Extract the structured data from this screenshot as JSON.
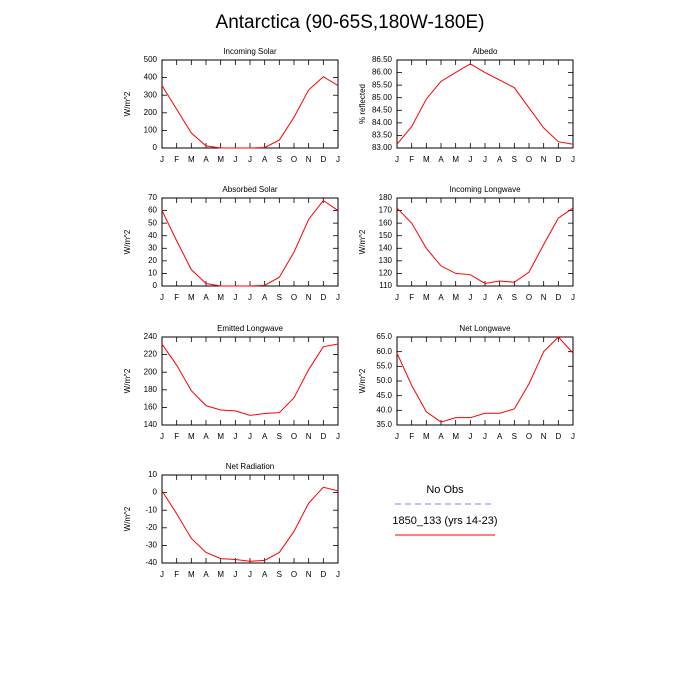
{
  "title": "Antarctica (90-65S,180W-180E)",
  "legend": [
    {
      "name": "No Obs",
      "color": "#8080ff",
      "dashed": true
    },
    {
      "name": "1850_133 (yrs 14-23)",
      "color": "#ff0000",
      "dashed": false
    }
  ],
  "chart_data": [
    {
      "type": "line",
      "title": "Incoming Solar",
      "ylabel": "W/m^2",
      "categories": [
        "J",
        "F",
        "M",
        "A",
        "M",
        "J",
        "J",
        "A",
        "S",
        "O",
        "N",
        "D",
        "J"
      ],
      "values": [
        355,
        220,
        85,
        12,
        0,
        0,
        0,
        3,
        45,
        175,
        330,
        405,
        355
      ],
      "color": "#ff0000",
      "ylim": [
        0,
        500
      ],
      "yticks": [
        0,
        100,
        200,
        300,
        400,
        500
      ]
    },
    {
      "type": "line",
      "title": "Albedo",
      "ylabel": "% reflected",
      "categories": [
        "J",
        "F",
        "M",
        "A",
        "M",
        "J",
        "J",
        "A",
        "S",
        "O",
        "N",
        "D",
        "J"
      ],
      "values": [
        83.15,
        83.85,
        84.95,
        85.65,
        86.0,
        86.35,
        86.0,
        85.7,
        85.4,
        84.6,
        83.8,
        83.25,
        83.15
      ],
      "color": "#ff0000",
      "ylim": [
        83,
        86.5
      ],
      "yticks": [
        {
          "value": 83,
          "label": "83.00"
        },
        {
          "value": 83.5,
          "label": "83.50"
        },
        {
          "value": 84,
          "label": "84.00"
        },
        {
          "value": 84.5,
          "label": "84.50"
        },
        {
          "value": 85,
          "label": "85.00"
        },
        {
          "value": 85.5,
          "label": "85.50"
        },
        {
          "value": 86,
          "label": "86.00"
        },
        {
          "value": 86.5,
          "label": "86.50"
        }
      ]
    },
    {
      "type": "line",
      "title": "Absorbed Solar",
      "ylabel": "W/m^2",
      "categories": [
        "J",
        "F",
        "M",
        "A",
        "M",
        "J",
        "J",
        "A",
        "S",
        "O",
        "N",
        "D",
        "J"
      ],
      "values": [
        60,
        36,
        13,
        2,
        0,
        0,
        0,
        0.5,
        7,
        27,
        53,
        68,
        60
      ],
      "color": "#ff0000",
      "ylim": [
        0,
        70
      ],
      "yticks": [
        0,
        10,
        20,
        30,
        40,
        50,
        60,
        70
      ]
    },
    {
      "type": "line",
      "title": "Incoming Longwave",
      "ylabel": "W/m^2",
      "categories": [
        "J",
        "F",
        "M",
        "A",
        "M",
        "J",
        "J",
        "A",
        "S",
        "O",
        "N",
        "D",
        "J"
      ],
      "values": [
        172,
        160,
        140,
        126,
        120,
        119,
        112,
        114,
        113,
        121,
        143,
        164,
        172
      ],
      "color": "#ff0000",
      "ylim": [
        110,
        180
      ],
      "yticks": [
        110,
        120,
        130,
        140,
        150,
        160,
        170,
        180
      ]
    },
    {
      "type": "line",
      "title": "Emitted Longwave",
      "ylabel": "W/m^2",
      "categories": [
        "J",
        "F",
        "M",
        "A",
        "M",
        "J",
        "J",
        "A",
        "S",
        "O",
        "N",
        "D",
        "J"
      ],
      "values": [
        232,
        208,
        179,
        162,
        157,
        156,
        151,
        153,
        154,
        171,
        203,
        229,
        232
      ],
      "color": "#ff0000",
      "ylim": [
        140,
        240
      ],
      "yticks": [
        140,
        160,
        180,
        200,
        220,
        240
      ]
    },
    {
      "type": "line",
      "title": "Net Longwave",
      "ylabel": "W/m^2",
      "categories": [
        "J",
        "F",
        "M",
        "A",
        "M",
        "J",
        "J",
        "A",
        "S",
        "O",
        "N",
        "D",
        "J"
      ],
      "values": [
        59.5,
        48.5,
        39.5,
        36,
        37.5,
        37.5,
        39,
        39,
        40.5,
        49,
        60,
        65,
        59.5
      ],
      "color": "#ff0000",
      "ylim": [
        35,
        65
      ],
      "yticks": [
        {
          "value": 35,
          "label": "35.0"
        },
        {
          "value": 40,
          "label": "40.0"
        },
        {
          "value": 45,
          "label": "45.0"
        },
        {
          "value": 50,
          "label": "50.0"
        },
        {
          "value": 55,
          "label": "55.0"
        },
        {
          "value": 60,
          "label": "60.0"
        },
        {
          "value": 65,
          "label": "65.0"
        }
      ]
    },
    {
      "type": "line",
      "title": "Net Radiation",
      "ylabel": "W/m^2",
      "categories": [
        "J",
        "F",
        "M",
        "A",
        "M",
        "J",
        "J",
        "A",
        "S",
        "O",
        "N",
        "D",
        "J"
      ],
      "values": [
        1,
        -12,
        -26,
        -34,
        -37.5,
        -38,
        -39,
        -38.5,
        -34,
        -22,
        -6,
        3,
        1
      ],
      "color": "#ff0000",
      "ylim": [
        -40,
        10
      ],
      "yticks": [
        -40,
        -30,
        -20,
        -10,
        0,
        10
      ]
    }
  ]
}
